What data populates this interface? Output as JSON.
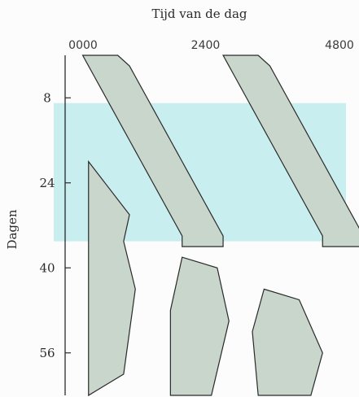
{
  "chart_data": {
    "type": "actogram",
    "title": "Tijd van de dag",
    "xlabel": "Tijd van de dag",
    "ylabel": "Dagen",
    "x_ticks": [
      "0000",
      "2400",
      "4800"
    ],
    "x_tick_values": [
      0,
      24,
      48
    ],
    "y_ticks": [
      "8",
      "24",
      "40",
      "56"
    ],
    "y_tick_values": [
      8,
      24,
      40,
      56
    ],
    "xlim": [
      0,
      48
    ],
    "ylim": [
      0,
      64
    ],
    "highlight_band_days": [
      9,
      35
    ],
    "colors": {
      "activity_fill": "#c9d6cc",
      "activity_fill_dark": "#8fae99",
      "highlight_band": "#c8eef0",
      "outline": "#2a2a2a"
    },
    "series": [
      {
        "main_band_hours": [
          [
            0,
            3,
            9
          ],
          [
            2,
            4,
            11
          ],
          [
            4,
            5,
            12
          ],
          [
            6,
            6,
            13
          ],
          [
            8,
            7,
            14
          ],
          [
            10,
            8,
            15
          ],
          [
            12,
            9,
            16
          ],
          [
            14,
            10,
            17
          ],
          [
            16,
            11,
            18
          ],
          [
            18,
            12,
            19
          ],
          [
            20,
            13,
            20
          ],
          [
            22,
            14,
            21
          ],
          [
            24,
            15,
            22
          ],
          [
            26,
            16,
            23
          ],
          [
            28,
            17,
            24
          ],
          [
            30,
            18,
            25
          ],
          [
            32,
            19,
            26
          ],
          [
            34,
            20,
            27
          ]
        ]
      }
    ]
  }
}
